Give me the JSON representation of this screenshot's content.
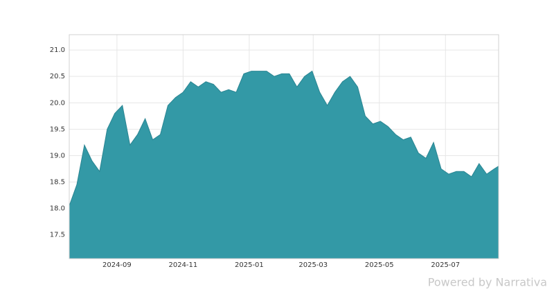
{
  "chart_data": {
    "type": "area",
    "x": [
      "2024-07-19",
      "2024-07-26",
      "2024-08-02",
      "2024-08-09",
      "2024-08-16",
      "2024-08-23",
      "2024-08-30",
      "2024-09-06",
      "2024-09-13",
      "2024-09-20",
      "2024-09-27",
      "2024-10-04",
      "2024-10-11",
      "2024-10-18",
      "2024-10-25",
      "2024-11-01",
      "2024-11-08",
      "2024-11-15",
      "2024-11-22",
      "2024-11-29",
      "2024-12-06",
      "2024-12-13",
      "2024-12-20",
      "2024-12-27",
      "2025-01-03",
      "2025-01-10",
      "2025-01-17",
      "2025-01-24",
      "2025-01-31",
      "2025-02-07",
      "2025-02-14",
      "2025-02-21",
      "2025-02-28",
      "2025-03-07",
      "2025-03-14",
      "2025-03-21",
      "2025-03-28",
      "2025-04-04",
      "2025-04-11",
      "2025-04-18",
      "2025-04-25",
      "2025-05-02",
      "2025-05-09",
      "2025-05-16",
      "2025-05-23",
      "2025-05-30",
      "2025-06-06",
      "2025-06-13",
      "2025-06-20",
      "2025-06-27",
      "2025-07-04",
      "2025-07-11",
      "2025-07-18",
      "2025-07-25",
      "2025-08-01",
      "2025-08-08",
      "2025-08-15",
      "2025-08-19"
    ],
    "values": [
      18.05,
      18.45,
      19.2,
      18.9,
      18.7,
      19.5,
      19.8,
      19.95,
      19.2,
      19.4,
      19.7,
      19.3,
      19.4,
      19.95,
      20.1,
      20.2,
      20.4,
      20.3,
      20.4,
      20.35,
      20.2,
      20.25,
      20.2,
      20.55,
      20.6,
      20.6,
      20.6,
      20.5,
      20.55,
      20.55,
      20.3,
      20.5,
      20.6,
      20.2,
      19.95,
      20.2,
      20.4,
      20.5,
      20.3,
      19.75,
      19.6,
      19.65,
      19.55,
      19.4,
      19.3,
      19.35,
      19.05,
      18.95,
      19.25,
      18.75,
      18.65,
      18.7,
      18.7,
      18.6,
      18.85,
      18.65,
      18.75,
      18.8
    ],
    "color": "#3399a6",
    "xlim": [
      "2024-07-19",
      "2025-08-19"
    ],
    "xticks": [
      "2024-09",
      "2024-11",
      "2025-01",
      "2025-03",
      "2025-05",
      "2025-07"
    ],
    "ylim": [
      17.05,
      21.29
    ],
    "yticks": [
      17.5,
      {
        "value": 18,
        "label": "18.0"
      },
      18.5,
      {
        "value": 19,
        "label": "19.0"
      },
      19.5,
      {
        "value": 20,
        "label": "20.0"
      },
      20.5,
      {
        "value": 21,
        "label": "21.0"
      }
    ],
    "grid": true,
    "footer": "Powered by Narrativa"
  }
}
